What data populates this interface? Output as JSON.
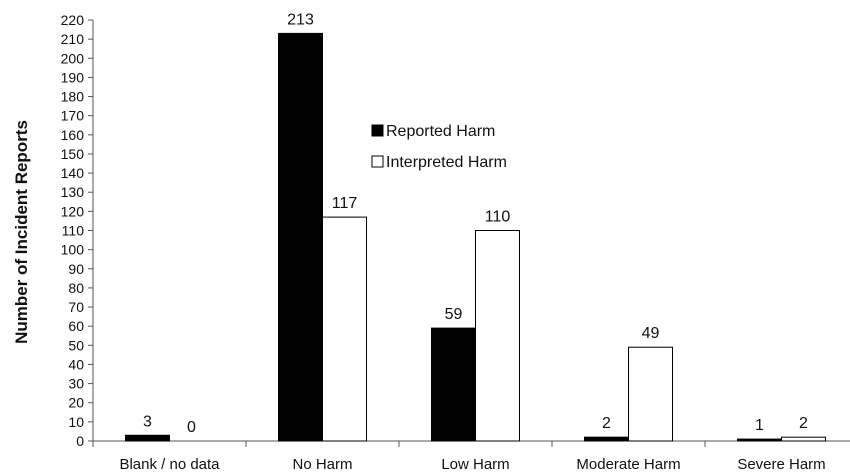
{
  "chart_data": {
    "type": "bar",
    "title": "",
    "xlabel": "",
    "ylabel": "Number of Incident Reports",
    "ylim": [
      0,
      220
    ],
    "ytick_step": 10,
    "grid": false,
    "legend_position": "upper-center",
    "categories": [
      "Blank / no data",
      "No Harm",
      "Low Harm",
      "Moderate Harm",
      "Severe Harm"
    ],
    "series": [
      {
        "name": "Reported Harm",
        "values": [
          3,
          213,
          59,
          2,
          1
        ],
        "color": "#000000"
      },
      {
        "name": "Interpreted Harm",
        "values": [
          0,
          117,
          110,
          49,
          2
        ],
        "color": "#ffffff"
      }
    ]
  }
}
